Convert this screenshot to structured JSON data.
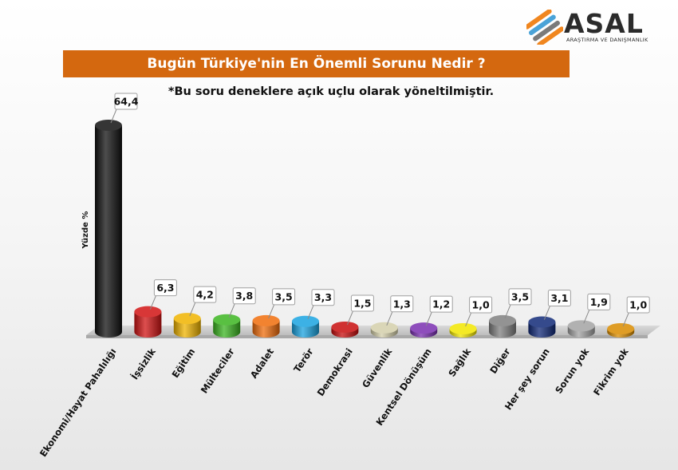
{
  "logo": {
    "name": "ASAL",
    "tagline": "ARAŞTIRMA VE DANIŞMANLIK",
    "colors": [
      "#f0861f",
      "#4aa3d8",
      "#7a7a7a"
    ]
  },
  "chart_data": {
    "type": "bar",
    "title": "Bugün Türkiye'nin En Önemli Sorunu Nedir ?",
    "subtitle": "*Bu soru deneklere açık uçlu olarak yöneltilmiştir.",
    "ylabel": "Yüzde %",
    "xlabel": "",
    "ylim": [
      0,
      66
    ],
    "grid": false,
    "legend": "none",
    "categories": [
      "Ekonomi/Hayat Pahalılığı",
      "İşsizlik",
      "Eğitim",
      "Mülteciler",
      "Adalet",
      "Terör",
      "Demokrasi",
      "Güvenlik",
      "Kentsel Dönüşüm",
      "Sağlık",
      "Diğer",
      "Her şey sorun",
      "Sorun yok",
      "Fikrim yok"
    ],
    "values": [
      64.4,
      6.3,
      4.2,
      3.8,
      3.5,
      3.3,
      1.5,
      1.3,
      1.2,
      1.0,
      3.5,
      3.1,
      1.9,
      1.0
    ],
    "value_labels": [
      "64,4",
      "6,3",
      "4,2",
      "3,8",
      "3,5",
      "3,3",
      "1,5",
      "1,3",
      "1,2",
      "1,0",
      "3,5",
      "3,1",
      "1,9",
      "1,0"
    ],
    "colors": [
      "#111111",
      "#d11414",
      "#f0b400",
      "#3cb521",
      "#f06d0c",
      "#1aa3e0",
      "#c80e0e",
      "#d4cfaa",
      "#7a2fb0",
      "#f2e600",
      "#808080",
      "#112a78",
      "#a3a3a3",
      "#d98c00"
    ]
  }
}
